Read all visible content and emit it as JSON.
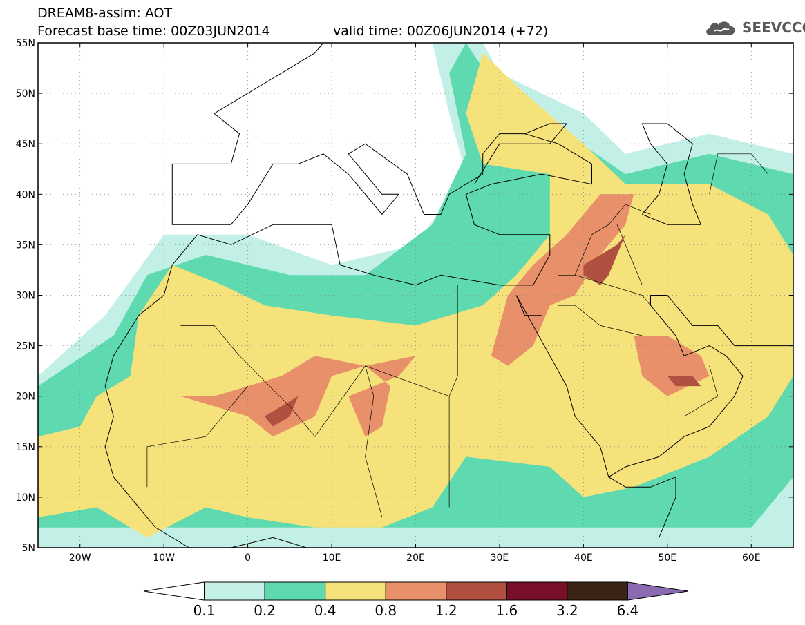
{
  "header": {
    "title": "DREAM8-assim: AOT",
    "base_time": "Forecast base time: 00Z03JUN2014",
    "valid_time": "valid time: 00Z06JUN2014 (+72)",
    "logo_text": "SEEVCCC",
    "logo_icon": "cloud-icon"
  },
  "map": {
    "lon_range": [
      -25,
      65
    ],
    "lat_range": [
      5,
      55
    ],
    "lon_ticks": [
      {
        "value": -20,
        "label": "20W"
      },
      {
        "value": -10,
        "label": "10W"
      },
      {
        "value": 0,
        "label": "0"
      },
      {
        "value": 10,
        "label": "10E"
      },
      {
        "value": 20,
        "label": "20E"
      },
      {
        "value": 30,
        "label": "30E"
      },
      {
        "value": 40,
        "label": "40E"
      },
      {
        "value": 50,
        "label": "50E"
      },
      {
        "value": 60,
        "label": "60E"
      }
    ],
    "lat_ticks": [
      {
        "value": 55,
        "label": "55N"
      },
      {
        "value": 50,
        "label": "50N"
      },
      {
        "value": 45,
        "label": "45N"
      },
      {
        "value": 40,
        "label": "40N"
      },
      {
        "value": 35,
        "label": "35N"
      },
      {
        "value": 30,
        "label": "30N"
      },
      {
        "value": 25,
        "label": "25N"
      },
      {
        "value": 20,
        "label": "20N"
      },
      {
        "value": 15,
        "label": "15N"
      },
      {
        "value": 10,
        "label": "10N"
      },
      {
        "value": 5,
        "label": "5N"
      }
    ],
    "grid": true
  },
  "colorbar": {
    "labels": [
      "0.1",
      "0.2",
      "0.4",
      "0.8",
      "1.2",
      "1.6",
      "3.2",
      "6.4"
    ],
    "colors": [
      "#ffffff",
      "#c3f0e6",
      "#5ed9b0",
      "#f5e27a",
      "#e8906a",
      "#b05040",
      "#7a0f2a",
      "#3b2416",
      "#8a6ab0"
    ]
  },
  "chart_data": {
    "type": "heatmap",
    "title": "DREAM8-assim: AOT",
    "bounds": {
      "lon": [
        -25,
        65
      ],
      "lat": [
        5,
        55
      ]
    },
    "levels": [
      0.1,
      0.2,
      0.4,
      0.8,
      1.2,
      1.6,
      3.2,
      6.4
    ],
    "regions": [
      {
        "level": 0.1,
        "polygon": [
          [
            -25,
            5
          ],
          [
            65,
            5
          ],
          [
            65,
            44
          ],
          [
            55,
            46
          ],
          [
            45,
            44
          ],
          [
            40,
            48
          ],
          [
            30,
            52
          ],
          [
            28,
            55
          ],
          [
            22,
            55
          ],
          [
            24,
            48
          ],
          [
            26,
            42
          ],
          [
            20,
            35
          ],
          [
            10,
            33
          ],
          [
            0,
            36
          ],
          [
            -10,
            36
          ],
          [
            -17,
            28
          ],
          [
            -25,
            22
          ]
        ]
      },
      {
        "level": 0.2,
        "polygon": [
          [
            -25,
            7
          ],
          [
            60,
            7
          ],
          [
            65,
            12
          ],
          [
            65,
            42
          ],
          [
            55,
            44
          ],
          [
            45,
            42
          ],
          [
            38,
            46
          ],
          [
            30,
            50
          ],
          [
            26,
            55
          ],
          [
            24,
            52
          ],
          [
            26,
            44
          ],
          [
            22,
            37
          ],
          [
            14,
            32
          ],
          [
            5,
            32
          ],
          [
            -5,
            34
          ],
          [
            -12,
            32
          ],
          [
            -16,
            26
          ],
          [
            -25,
            21
          ]
        ]
      },
      {
        "level": 0.4,
        "polygon": [
          [
            -25,
            8
          ],
          [
            -18,
            9
          ],
          [
            -12,
            6
          ],
          [
            -5,
            9
          ],
          [
            0,
            8
          ],
          [
            8,
            7
          ],
          [
            16,
            7
          ],
          [
            22,
            9
          ],
          [
            26,
            14
          ],
          [
            36,
            13
          ],
          [
            40,
            10
          ],
          [
            46,
            11
          ],
          [
            55,
            14
          ],
          [
            62,
            18
          ],
          [
            65,
            22
          ],
          [
            65,
            34
          ],
          [
            62,
            38
          ],
          [
            55,
            41
          ],
          [
            45,
            41
          ],
          [
            40,
            45
          ],
          [
            33,
            50
          ],
          [
            28,
            54
          ],
          [
            26,
            48
          ],
          [
            28,
            43
          ],
          [
            36,
            42
          ],
          [
            36,
            36
          ],
          [
            32,
            32
          ],
          [
            28,
            29
          ],
          [
            20,
            27
          ],
          [
            10,
            28
          ],
          [
            2,
            29
          ],
          [
            -3,
            31
          ],
          [
            -9,
            33
          ],
          [
            -13,
            28
          ],
          [
            -14,
            22
          ],
          [
            -18,
            20
          ],
          [
            -20,
            17
          ],
          [
            -25,
            16
          ]
        ]
      },
      {
        "level": 0.8,
        "polygon": [
          [
            -8,
            20
          ],
          [
            0,
            18
          ],
          [
            3,
            16
          ],
          [
            8,
            18
          ],
          [
            10,
            22
          ],
          [
            14,
            23
          ],
          [
            20,
            24
          ],
          [
            18,
            22
          ],
          [
            12,
            20
          ],
          [
            14,
            16
          ],
          [
            16,
            17
          ],
          [
            17,
            21
          ],
          [
            14,
            23
          ],
          [
            8,
            24
          ],
          [
            4,
            22
          ],
          [
            0,
            21
          ],
          [
            -4,
            20
          ]
        ]
      },
      {
        "level": 0.8,
        "polygon": [
          [
            31,
            23
          ],
          [
            34,
            25
          ],
          [
            36,
            29
          ],
          [
            39,
            30
          ],
          [
            42,
            34
          ],
          [
            45,
            37
          ],
          [
            46,
            40
          ],
          [
            42,
            40
          ],
          [
            38,
            36
          ],
          [
            34,
            33
          ],
          [
            31,
            30
          ],
          [
            30,
            27
          ],
          [
            29,
            24
          ]
        ]
      },
      {
        "level": 0.8,
        "polygon": [
          [
            46,
            26
          ],
          [
            50,
            26
          ],
          [
            54,
            24
          ],
          [
            55,
            22
          ],
          [
            50,
            20
          ],
          [
            47,
            22
          ]
        ]
      },
      {
        "level": 1.2,
        "polygon": [
          [
            3,
            17
          ],
          [
            5,
            18
          ],
          [
            6,
            20
          ],
          [
            4,
            19
          ],
          [
            2,
            18
          ]
        ]
      },
      {
        "level": 1.2,
        "polygon": [
          [
            40,
            33
          ],
          [
            44,
            35
          ],
          [
            45,
            36
          ],
          [
            43,
            32
          ],
          [
            42,
            31
          ],
          [
            40,
            32
          ]
        ]
      },
      {
        "level": 1.2,
        "polygon": [
          [
            50,
            22
          ],
          [
            53,
            22
          ],
          [
            54,
            21
          ],
          [
            51,
            21
          ]
        ]
      }
    ]
  }
}
